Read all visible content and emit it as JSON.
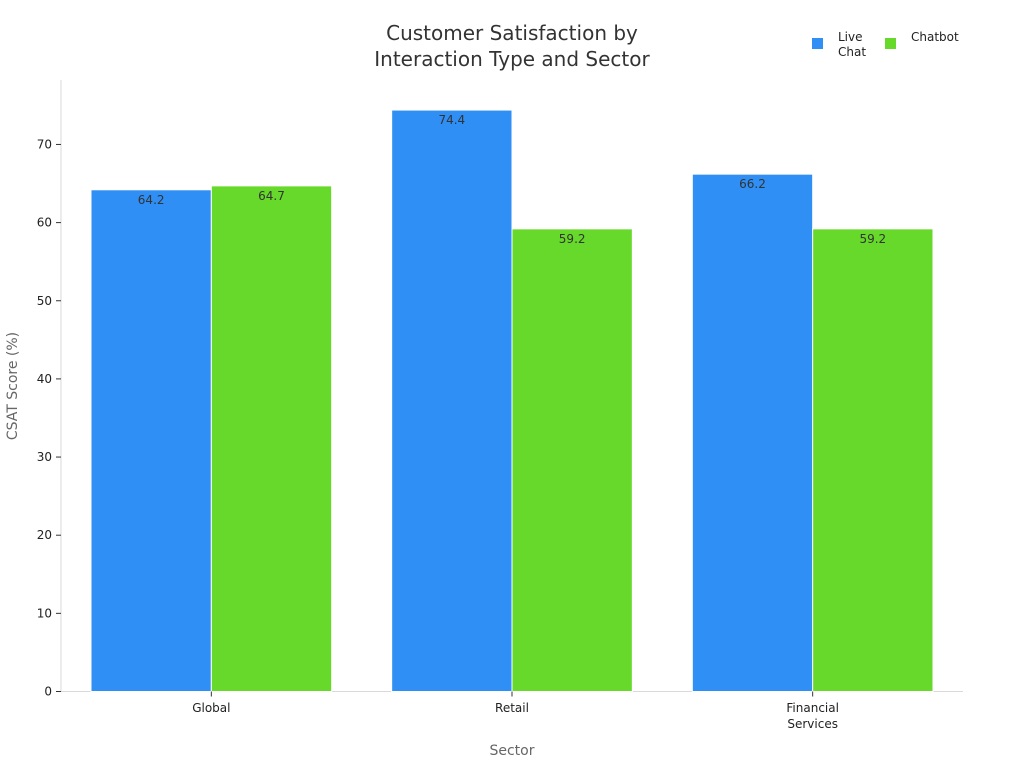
{
  "chart_data": {
    "type": "bar",
    "title_lines": [
      "Customer Satisfaction by",
      "Interaction Type and Sector"
    ],
    "xlabel": "Sector",
    "ylabel": "CSAT Score (%)",
    "categories": [
      [
        "Global"
      ],
      [
        "Retail"
      ],
      [
        "Financial",
        "Services"
      ]
    ],
    "series": [
      {
        "name": "Live Chat",
        "color": "#2f8ff5",
        "values": [
          64.2,
          74.4,
          66.2
        ],
        "labels": [
          "64.2",
          "74.4",
          "66.2"
        ]
      },
      {
        "name": "Chatbot",
        "color": "#66d92a",
        "values": [
          64.7,
          59.2,
          59.2
        ],
        "labels": [
          "64.7",
          "59.2",
          "59.2"
        ]
      }
    ],
    "ylim": [
      0,
      78
    ],
    "yticks": [
      0,
      10,
      20,
      30,
      40,
      50,
      60,
      70
    ],
    "legend_position": "top-right",
    "grid": false
  }
}
